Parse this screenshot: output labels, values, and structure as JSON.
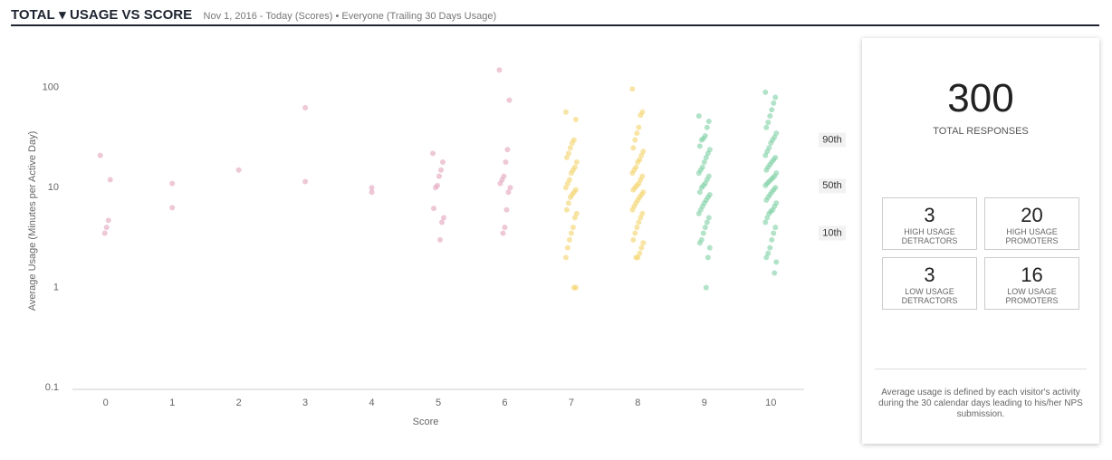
{
  "header": {
    "scope": "TOTAL",
    "title": "USAGE VS SCORE",
    "subtitle": "Nov 1, 2016 - Today (Scores) • Everyone (Trailing 30 Days Usage)"
  },
  "chart_data": {
    "type": "scatter",
    "y_label": "Average Usage (Minutes per Active Day)",
    "x_label": "Score",
    "xlim": [
      -0.5,
      10.5
    ],
    "xticks": [
      0,
      1,
      2,
      3,
      4,
      5,
      6,
      7,
      8,
      9,
      10
    ],
    "ylim": [
      0.1,
      220
    ],
    "yticks": [
      0.1,
      1,
      10,
      100
    ],
    "log_y": true,
    "grid": false,
    "series": [
      {
        "x": 0,
        "color": "#e3a3bc",
        "values": [
          21,
          12,
          4.7,
          4,
          3.5
        ]
      },
      {
        "x": 1,
        "color": "#e3a3bc",
        "values": [
          11,
          6.3
        ]
      },
      {
        "x": 2,
        "color": "#e3a3bc",
        "values": [
          15
        ]
      },
      {
        "x": 3,
        "color": "#e3a3bc",
        "values": [
          63,
          11.5
        ]
      },
      {
        "x": 4,
        "color": "#e3a3bc",
        "values": [
          10,
          9
        ]
      },
      {
        "x": 5,
        "color": "#e3a3bc",
        "values": [
          22,
          18,
          15,
          13,
          10.5,
          10,
          6.2,
          5,
          4.5,
          3
        ]
      },
      {
        "x": 6,
        "color": "#e3a3bc",
        "values": [
          150,
          75,
          24,
          18,
          13,
          12,
          11,
          10,
          9,
          6,
          4,
          3.5
        ]
      },
      {
        "x": 7,
        "color": "#f3d36b",
        "values": [
          57,
          48,
          30,
          28,
          25,
          22,
          20,
          18,
          16,
          15,
          14,
          12,
          11,
          10,
          9.5,
          9,
          8.5,
          8,
          7,
          6,
          5.5,
          5,
          4,
          3.5,
          3,
          2.5,
          2,
          1,
          1
        ]
      },
      {
        "x": 8,
        "color": "#f3d36b",
        "values": [
          97,
          57,
          53,
          40,
          35,
          30,
          25,
          23,
          21,
          19,
          18,
          16,
          15,
          14,
          13,
          12,
          11,
          10.5,
          10,
          9.5,
          9,
          8.5,
          8,
          7.5,
          7,
          6.5,
          6,
          5.5,
          5,
          4.5,
          4,
          3.5,
          3,
          2.8,
          2.5,
          2.2,
          2,
          2
        ]
      },
      {
        "x": 9,
        "color": "#7fd1a5",
        "values": [
          52,
          46,
          40,
          33,
          31,
          30,
          26,
          24,
          22,
          20,
          18,
          16,
          15,
          14,
          13,
          12,
          11,
          10.5,
          10,
          9,
          8.5,
          8,
          7.5,
          7,
          6.5,
          6,
          5.5,
          5,
          4.5,
          4,
          3.5,
          3,
          2.8,
          2.5,
          2,
          1
        ]
      },
      {
        "x": 10,
        "color": "#7fd1a5",
        "values": [
          90,
          80,
          70,
          60,
          52,
          45,
          40,
          35,
          32,
          30,
          28,
          25,
          23,
          21,
          20,
          19,
          18,
          17,
          16,
          15,
          14,
          13,
          12.5,
          12,
          11.5,
          11,
          10.5,
          10,
          9.5,
          9,
          8.5,
          8,
          7.5,
          7,
          6.5,
          6,
          5.8,
          5.5,
          5,
          4.5,
          4,
          3.5,
          3,
          2.5,
          2.2,
          2,
          1.8,
          1.4
        ]
      }
    ],
    "annotations": [
      {
        "label": "90th",
        "value": 30
      },
      {
        "label": "50th",
        "value": 10.4
      },
      {
        "label": "10th",
        "value": 3.5
      }
    ]
  },
  "summary": {
    "total": 300,
    "total_label": "TOTAL RESPONSES",
    "boxes": [
      {
        "value": 3,
        "label": "HIGH USAGE DETRACTORS"
      },
      {
        "value": 20,
        "label": "HIGH USAGE PROMOTERS"
      },
      {
        "value": 3,
        "label": "LOW USAGE DETRACTORS"
      },
      {
        "value": 16,
        "label": "LOW USAGE PROMOTERS"
      }
    ],
    "note": "Average usage is defined by each visitor's activity during the 30 calendar days leading to his/her NPS submission."
  }
}
